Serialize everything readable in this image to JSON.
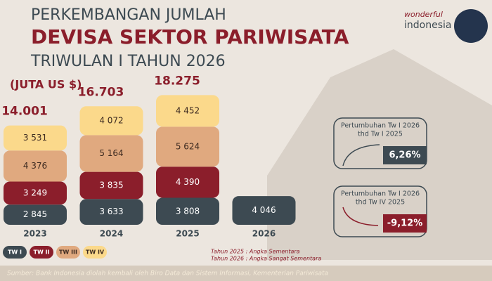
{
  "chart_data": {
    "type": "stacked-bar",
    "title": [
      "PERKEMBANGAN JUMLAH",
      "DEVISA SEKTOR PARIWISATA",
      "TRIWULAN I TAHUN 2026"
    ],
    "unit": "(JUTA US $)",
    "categories": [
      "2023",
      "2024",
      "2025",
      "2026"
    ],
    "series": [
      {
        "name": "TW I",
        "color": "#3d4a52",
        "values": [
          2845,
          3633,
          3808,
          4046
        ],
        "value_labels": [
          "2 845",
          "3 633",
          "3 808",
          "4 046"
        ]
      },
      {
        "name": "TW II",
        "color": "#8b1e2b",
        "values": [
          3249,
          3835,
          4390,
          null
        ],
        "value_labels": [
          "3 249",
          "3 835",
          "4 390",
          null
        ]
      },
      {
        "name": "TW III",
        "color": "#e0a97f",
        "values": [
          4376,
          5164,
          5624,
          null
        ],
        "value_labels": [
          "4 376",
          "5 164",
          "5 624",
          null
        ]
      },
      {
        "name": "TW IV",
        "color": "#fbd98b",
        "values": [
          3531,
          4072,
          4452,
          null
        ],
        "value_labels": [
          "3 531",
          "4 072",
          "4 452",
          null
        ]
      }
    ],
    "totals": {
      "values": [
        14001,
        16703,
        18275,
        null
      ],
      "value_labels": [
        "14.001",
        "16.703",
        "18.275",
        null
      ]
    },
    "growth": [
      {
        "label": [
          "Pertumbuhan Tw I 2026",
          "thd Tw I 2025"
        ],
        "value": "6,26%",
        "color": "#3d4a52"
      },
      {
        "label": [
          "Pertumbuhan Tw I 2026",
          "thd Tw IV 2025"
        ],
        "value": "-9,12%",
        "color": "#8b1e2b"
      }
    ],
    "notes": [
      "Tahun 2025 : Angka Sementara",
      "Tahun 2026 : Angka Sangat Sementara"
    ],
    "source": "Sumber: Bank Indonesia diolah kembali oleh Biro Data dan Sistem Informasi, Kementerian Pariwisata",
    "logo": [
      "wonderful",
      "indonesia"
    ]
  }
}
